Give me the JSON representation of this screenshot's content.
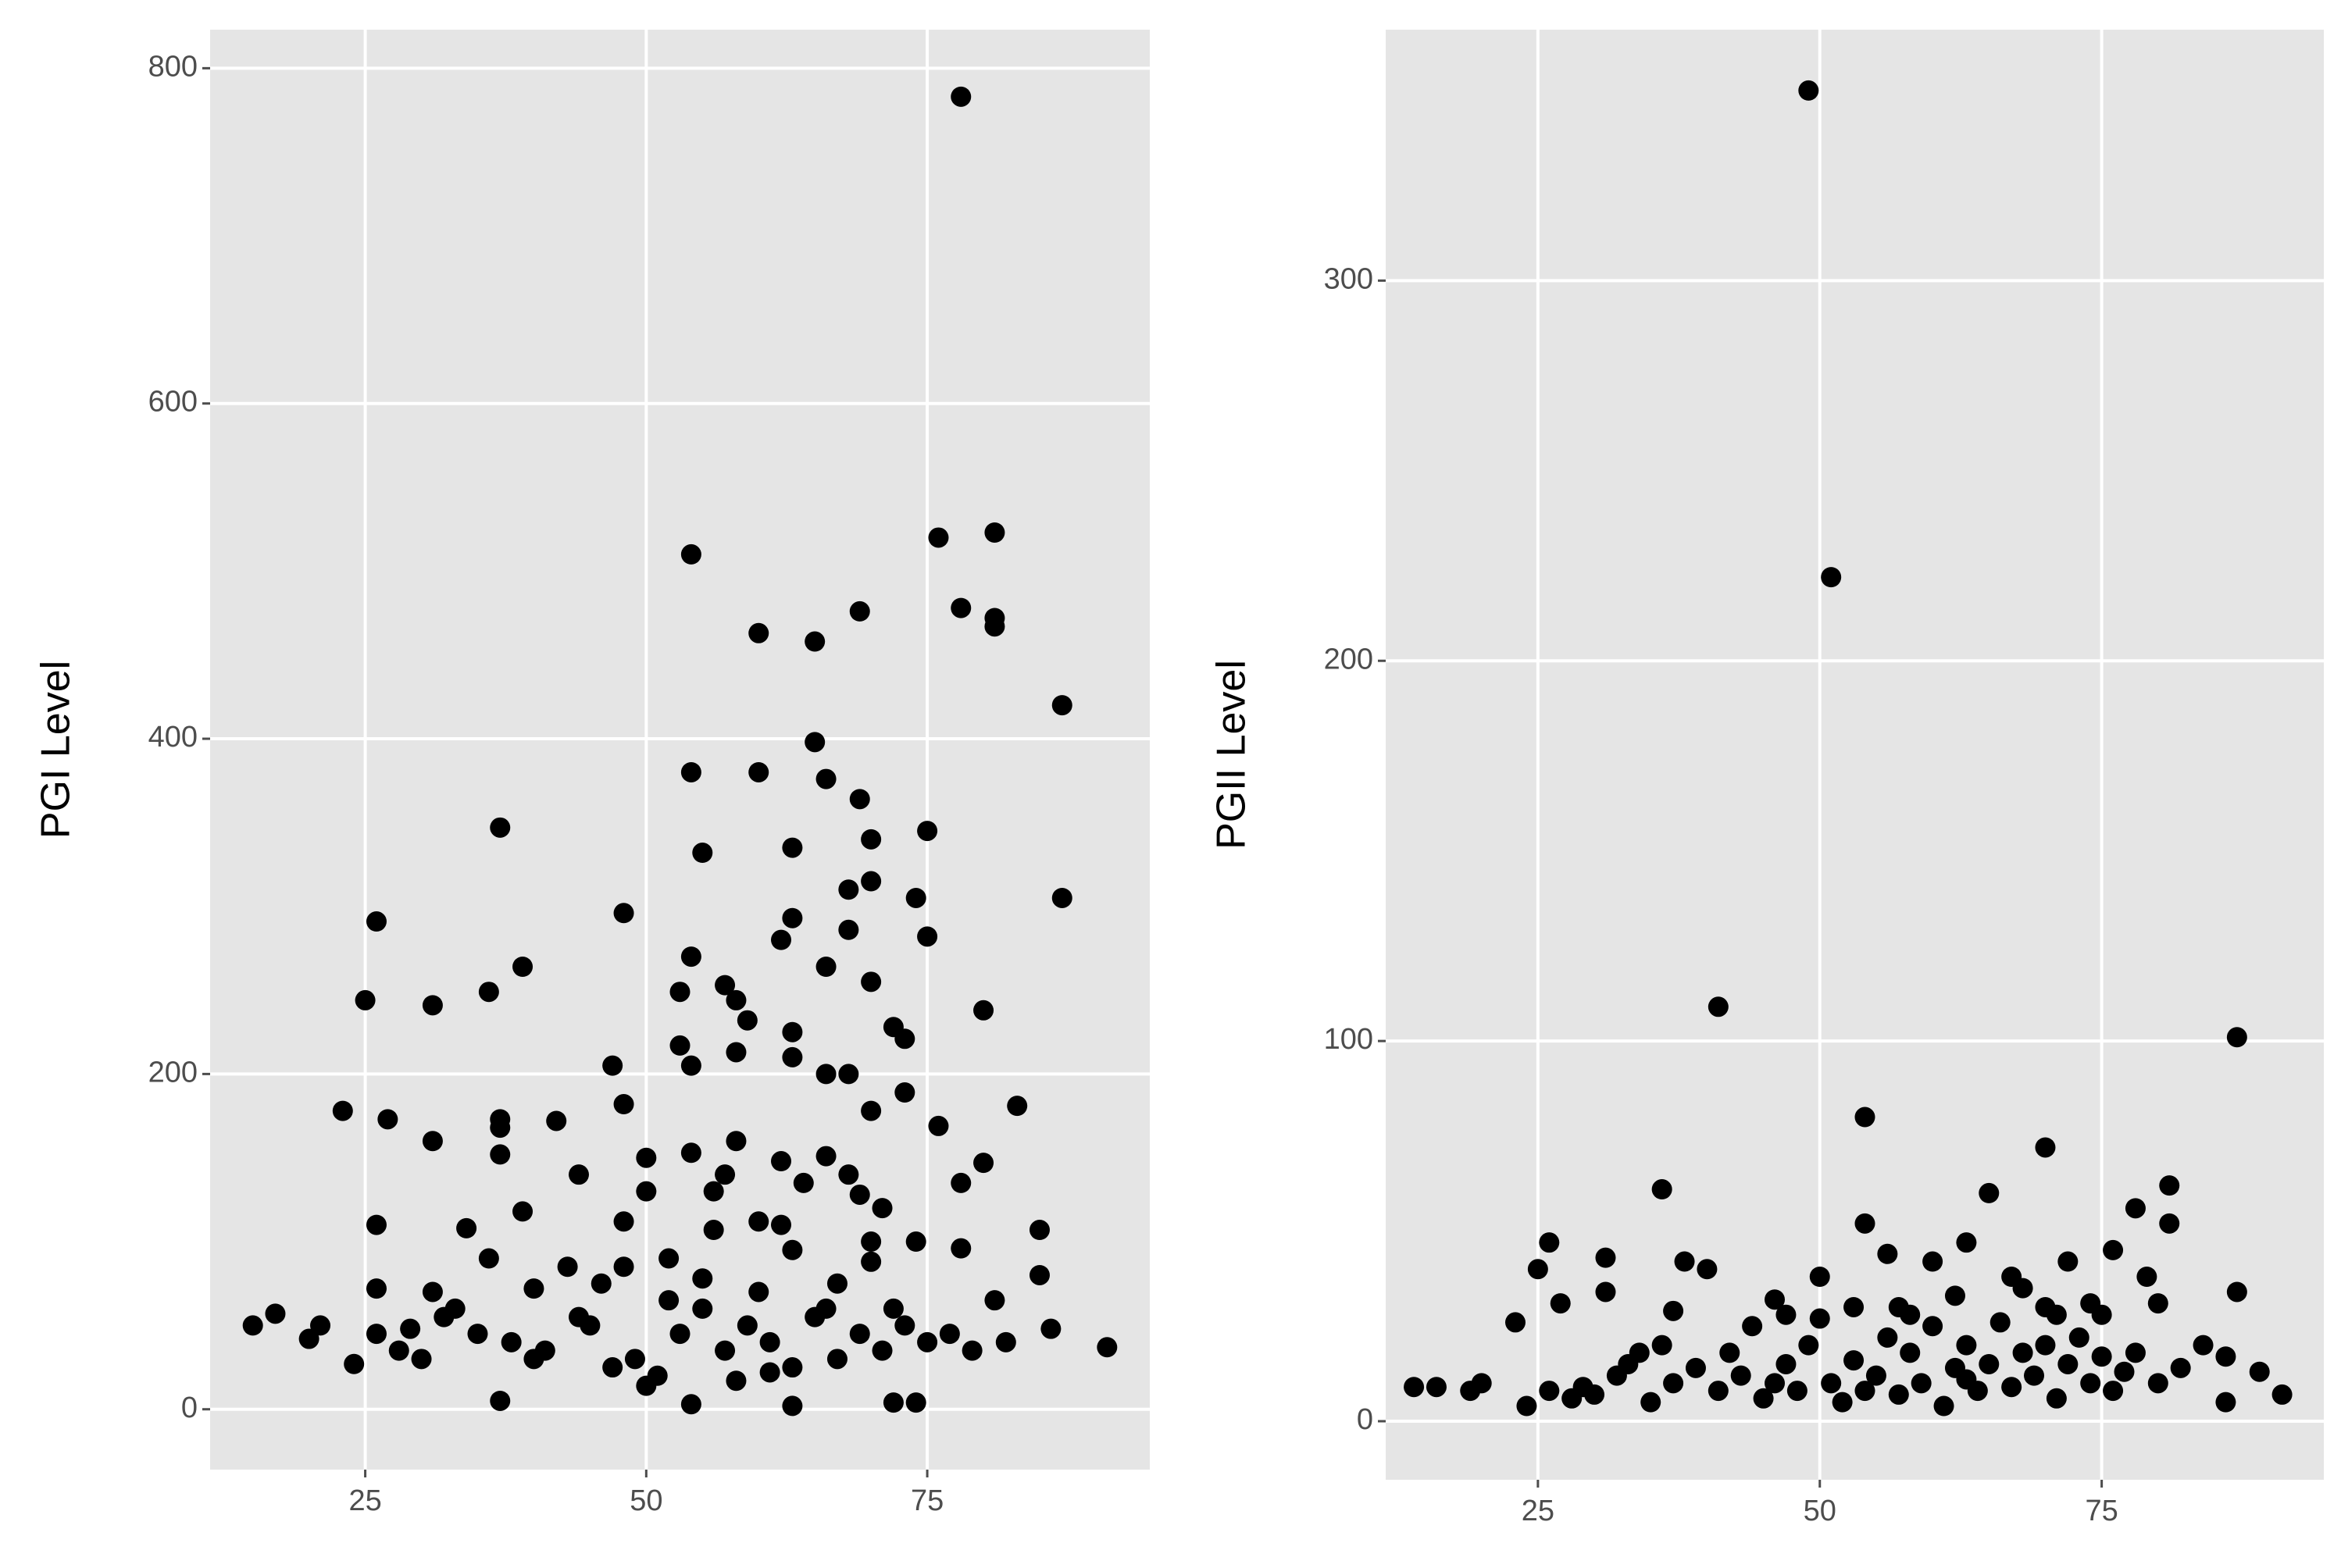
{
  "chart_data": [
    {
      "type": "scatter",
      "y_label": "PGI Level",
      "color": "#000000",
      "grid": true,
      "xlim": [
        11.2,
        94.8
      ],
      "ylim": [
        -36,
        823
      ],
      "xticks": [
        25,
        50,
        75
      ],
      "yticks": [
        0,
        200,
        400,
        600,
        800
      ],
      "x": [
        78,
        54,
        76,
        81,
        78,
        81,
        81,
        69,
        60,
        65,
        87,
        65,
        54,
        60,
        66,
        69,
        37,
        75,
        70,
        55,
        63,
        70,
        68,
        87,
        74,
        48,
        26,
        63,
        75,
        62,
        54,
        66,
        39,
        68,
        36,
        25,
        31,
        53,
        57,
        58,
        80,
        70,
        59,
        72,
        73,
        63,
        53,
        58,
        54,
        66,
        68,
        47,
        63,
        73,
        23,
        27,
        37,
        37,
        42,
        48,
        70,
        83,
        76,
        31,
        58,
        37,
        66,
        54,
        62,
        80,
        44,
        57,
        64,
        78,
        50,
        69,
        26,
        34,
        39,
        48,
        56,
        60,
        71,
        85,
        36,
        43,
        52,
        63,
        70,
        78,
        74,
        46,
        55,
        26,
        31,
        40,
        67,
        85,
        15,
        17,
        20,
        21,
        24,
        26,
        28,
        30,
        33,
        35,
        38,
        41,
        44,
        47,
        49,
        51,
        53,
        55,
        57,
        59,
        61,
        63,
        65,
        67,
        69,
        71,
        73,
        75,
        77,
        79,
        81,
        82,
        86,
        91,
        37,
        54,
        63,
        72,
        74,
        50,
        58,
        61,
        45,
        52,
        60,
        66,
        70,
        62,
        56,
        50,
        68,
        72,
        48,
        40,
        32,
        29
      ],
      "values": [
        783,
        510,
        520,
        523,
        478,
        472,
        467,
        476,
        463,
        458,
        420,
        398,
        380,
        380,
        376,
        364,
        347,
        345,
        340,
        332,
        335,
        315,
        310,
        305,
        305,
        296,
        291,
        293,
        282,
        280,
        270,
        264,
        264,
        286,
        249,
        244,
        241,
        249,
        253,
        244,
        238,
        255,
        232,
        228,
        221,
        225,
        217,
        213,
        205,
        200,
        200,
        205,
        210,
        189,
        178,
        173,
        173,
        168,
        172,
        182,
        178,
        181,
        169,
        160,
        160,
        152,
        151,
        153,
        148,
        147,
        140,
        140,
        135,
        135,
        130,
        128,
        110,
        108,
        118,
        112,
        107,
        112,
        120,
        107,
        90,
        85,
        90,
        95,
        88,
        96,
        100,
        75,
        78,
        72,
        70,
        72,
        75,
        80,
        50,
        57,
        42,
        50,
        27,
        45,
        35,
        30,
        60,
        45,
        40,
        35,
        55,
        25,
        30,
        20,
        45,
        60,
        35,
        50,
        40,
        25,
        55,
        30,
        45,
        35,
        50,
        40,
        45,
        35,
        65,
        40,
        48,
        37,
        5,
        3,
        2,
        4,
        4,
        14,
        17,
        22,
        50,
        65,
        70,
        60,
        100,
        110,
        130,
        150,
        140,
        60,
        85,
        30,
        55,
        48
      ]
    },
    {
      "type": "scatter",
      "y_label": "PGII Level",
      "color": "#000000",
      "grid": true,
      "xlim": [
        11.5,
        94.7
      ],
      "ylim": [
        -15.4,
        366
      ],
      "xticks": [
        25,
        50,
        75
      ],
      "yticks": [
        0,
        100,
        200,
        300
      ],
      "x": [
        49,
        51,
        41,
        87,
        54,
        70,
        36,
        65,
        81,
        78,
        54,
        81,
        26,
        31,
        38,
        40,
        25,
        63,
        76,
        79,
        50,
        56,
        60,
        67,
        72,
        87,
        31,
        27,
        23,
        37,
        46,
        47,
        44,
        53,
        58,
        62,
        68,
        70,
        75,
        80,
        84,
        86,
        89,
        86,
        91,
        14,
        16,
        19,
        20,
        24,
        26,
        28,
        30,
        32,
        34,
        35,
        37,
        39,
        41,
        43,
        45,
        47,
        48,
        49,
        51,
        52,
        53,
        55,
        56,
        57,
        58,
        59,
        60,
        61,
        62,
        63,
        64,
        65,
        66,
        67,
        68,
        69,
        70,
        71,
        72,
        73,
        74,
        75,
        76,
        77,
        78,
        80,
        82,
        29,
        33,
        36,
        42,
        46,
        50,
        54,
        57,
        63,
        71,
        74
      ],
      "values": [
        350,
        222,
        109,
        101,
        80,
        72,
        61,
        60,
        62,
        56,
        52,
        52,
        47,
        43,
        42,
        40,
        40,
        47,
        45,
        38,
        38,
        44,
        42,
        38,
        42,
        34,
        34,
        31,
        26,
        29,
        32,
        28,
        25,
        30,
        28,
        33,
        35,
        30,
        28,
        31,
        20,
        17,
        13,
        5,
        7,
        9,
        9,
        8,
        10,
        4,
        8,
        6,
        7,
        12,
        18,
        5,
        10,
        14,
        8,
        12,
        6,
        15,
        8,
        20,
        10,
        5,
        16,
        12,
        22,
        7,
        18,
        10,
        25,
        4,
        14,
        20,
        8,
        15,
        26,
        9,
        18,
        12,
        20,
        6,
        15,
        22,
        10,
        17,
        8,
        13,
        18,
        10,
        14,
        9,
        15,
        20,
        18,
        10,
        27,
        8,
        30,
        11,
        28,
        31
      ]
    }
  ]
}
